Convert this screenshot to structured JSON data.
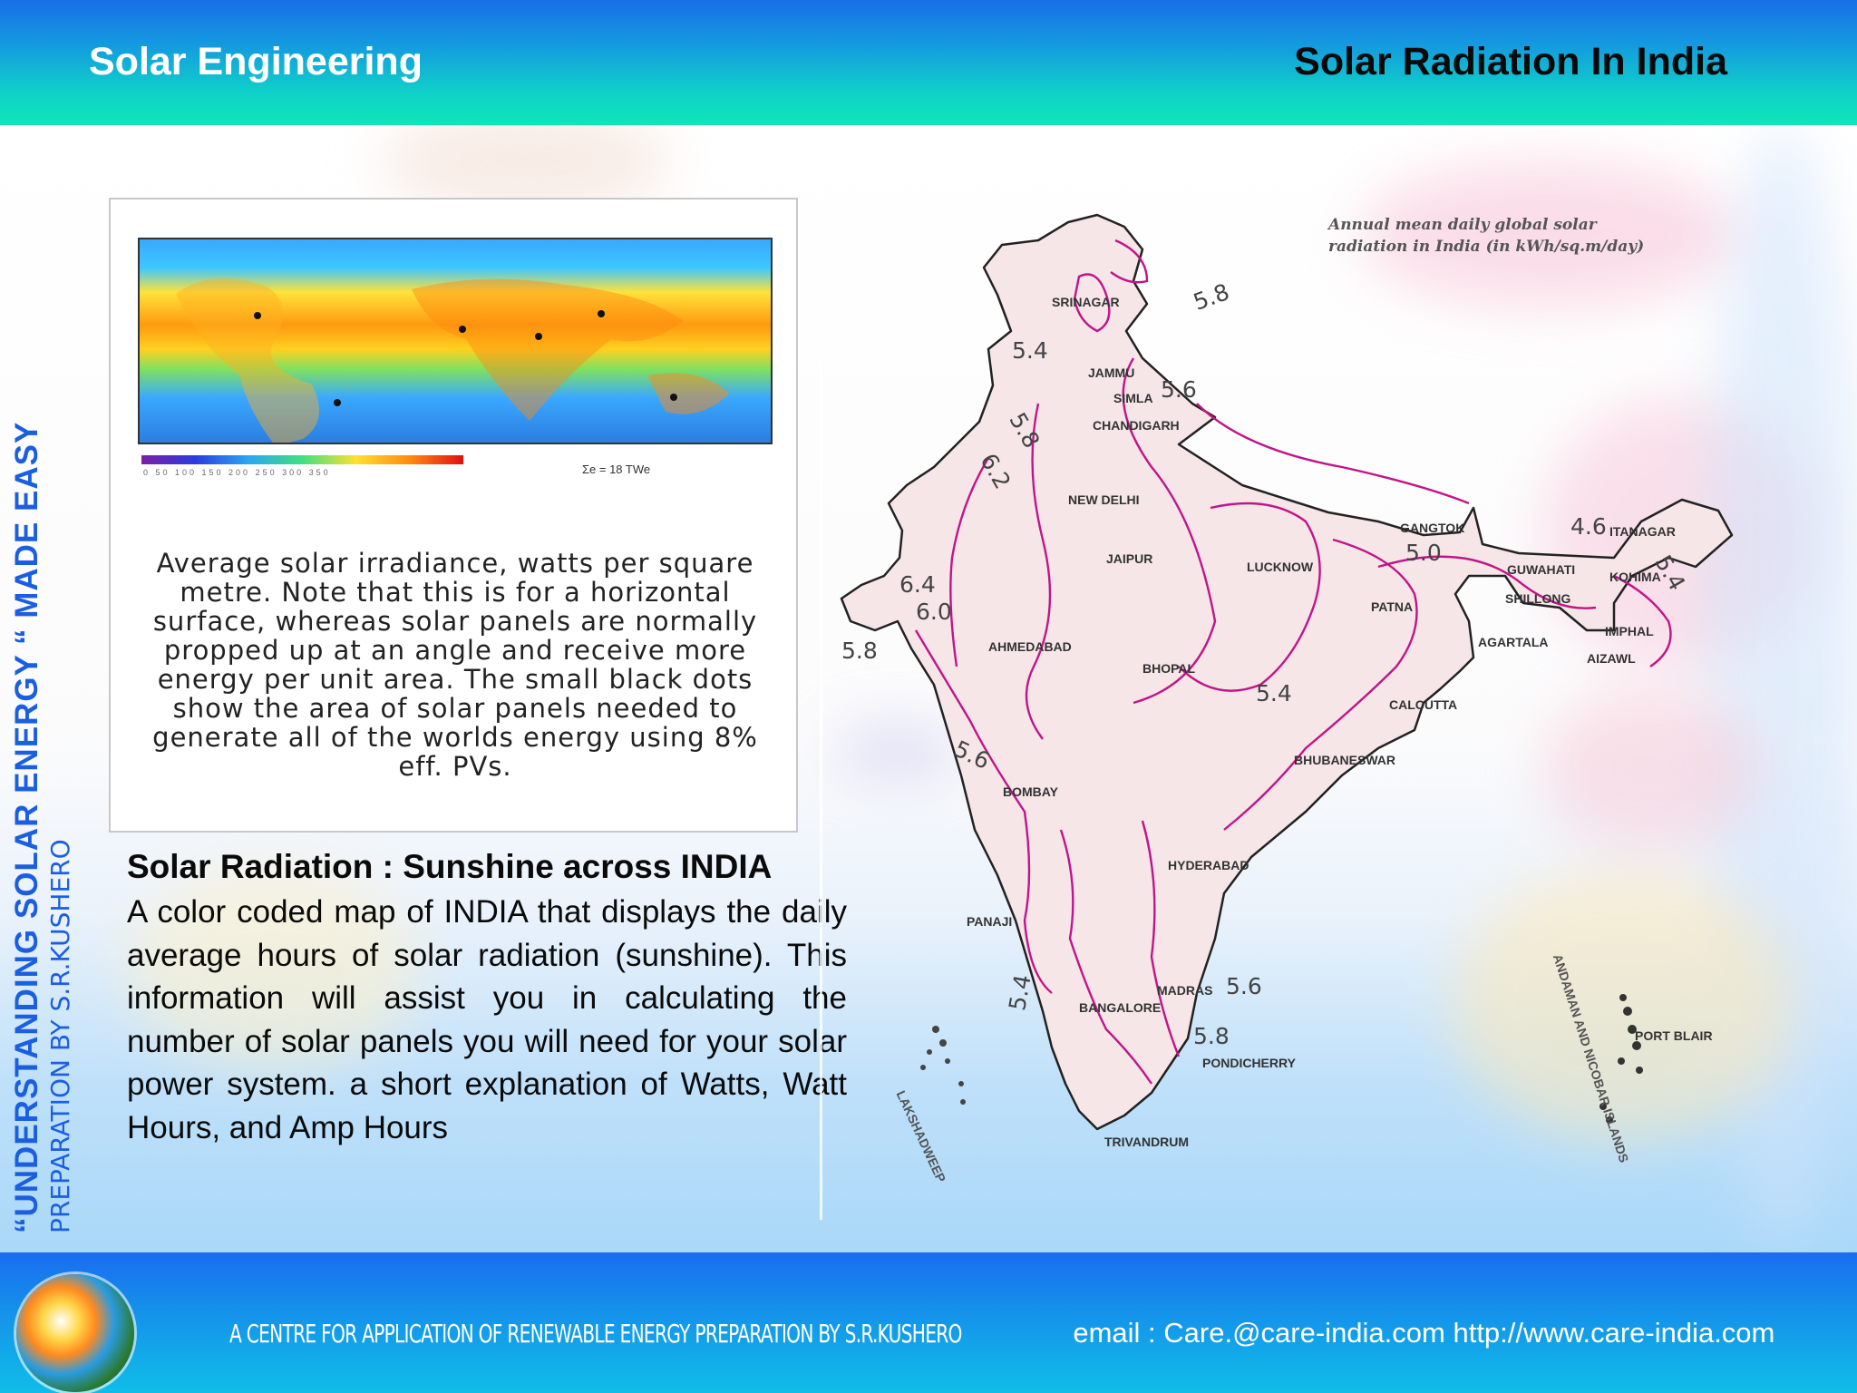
{
  "header": {
    "left_title": "Solar Engineering",
    "right_title": "Solar Radiation In India"
  },
  "sidebar": {
    "main": "“UNDERSTANDING SOLAR ENERGY “ MADE  EASY",
    "sub": "PREPARATION BY S.R.KUSHERO"
  },
  "figure": {
    "legend_scale": "0   50   100  150  200  250  300  350",
    "legend_tw": "Σe = 18 TWe",
    "caption": "Average solar irradiance, watts per square metre. Note that this is for a horizontal surface, whereas solar panels are normally propped up at an angle and receive more energy per unit area. The small black dots show the area of solar panels needed to generate all of the worlds energy using 8% eff. PVs."
  },
  "section": {
    "title": "Solar Radiation : Sunshine across INDIA",
    "body": "A color coded map of INDIA that displays the daily average hours of solar radiation (sunshine). This information will assist you in calculating the number of solar panels you will need for your solar power system. a short explanation of Watts, Watt Hours, and Amp Hours"
  },
  "india_map": {
    "title_line1": "Annual mean daily global solar",
    "title_line2": "radiation in India (in kWh/sq.m/day)",
    "cities": [
      "SRINAGAR",
      "JAMMU",
      "SIMLA",
      "CHANDIGARH",
      "NEW DELHI",
      "JAIPUR",
      "LUCKNOW",
      "AHMEDABAD",
      "BHOPAL",
      "PATNA",
      "GANGTOK",
      "GUWAHATI",
      "ITANAGAR",
      "KOHIMA",
      "SHILLONG",
      "IMPHAL",
      "AGARTALA",
      "AIZAWL",
      "CALCUTTA",
      "BHUBANESWAR",
      "BOMBAY",
      "HYDERABAD",
      "PANAJI",
      "MADRAS",
      "BANGALORE",
      "PONDICHERRY",
      "TRIVANDRUM",
      "PORT BLAIR"
    ],
    "isolines": [
      "5.8",
      "5.4",
      "5.6",
      "5.8",
      "6.2",
      "6.4",
      "6.0",
      "5.8",
      "5.4",
      "5.6",
      "5.0",
      "4.6",
      "5.4",
      "5.4",
      "5.6",
      "5.8"
    ],
    "islands_west": "LAKSHADWEEP",
    "islands_east": "ANDAMAN AND NICOBAR ISLANDS"
  },
  "footer": {
    "org": "A CENTRE FOR APPLICATION OF RENEWABLE ENERGY  PREPARATION BY S.R.KUSHERO",
    "contact": "  email  : Care.@care-india.com  http://www.care-india.com"
  }
}
